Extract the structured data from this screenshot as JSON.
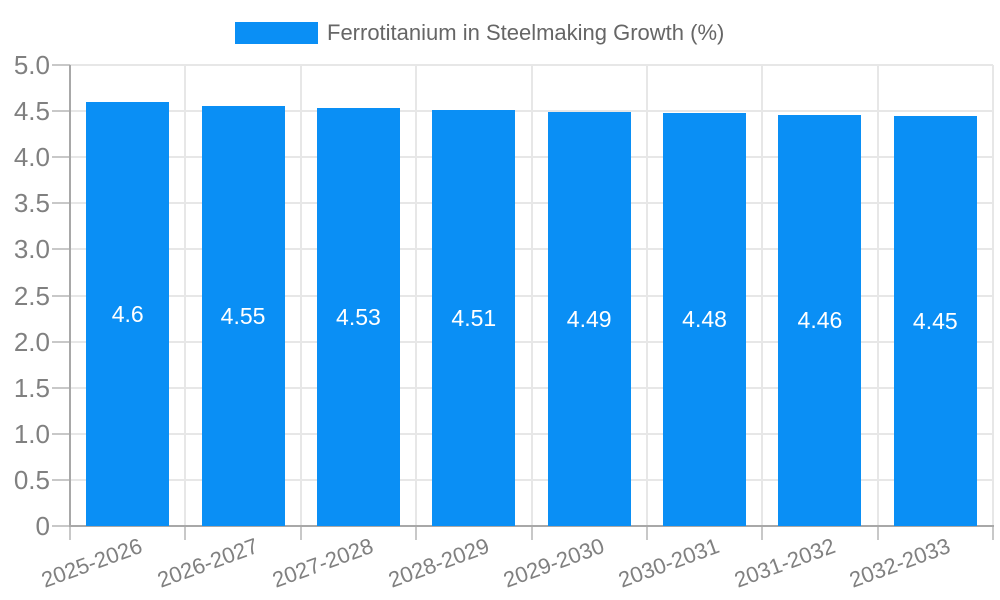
{
  "legend": {
    "label": "Ferrotitanium in Steelmaking Growth (%)"
  },
  "chart_data": {
    "type": "bar",
    "title": "Ferrotitanium in Steelmaking Growth (%)",
    "categories": [
      "2025-2026",
      "2026-2027",
      "2027-2028",
      "2028-2029",
      "2029-2030",
      "2030-2031",
      "2031-2032",
      "2032-2033"
    ],
    "values": [
      4.6,
      4.55,
      4.53,
      4.51,
      4.49,
      4.48,
      4.46,
      4.45
    ],
    "value_labels": [
      "4.6",
      "4.55",
      "4.53",
      "4.51",
      "4.49",
      "4.48",
      "4.46",
      "4.45"
    ],
    "xlabel": "",
    "ylabel": "",
    "ylim": [
      0,
      5
    ],
    "y_tick_step": 0.5,
    "y_tick_labels": [
      "0",
      "0.5",
      "1.0",
      "1.5",
      "2.0",
      "2.5",
      "3.0",
      "3.5",
      "4.0",
      "4.5",
      "5.0"
    ],
    "grid": true,
    "legend_position": "top-center",
    "x_tick_rotation_deg": -20,
    "colors": {
      "bar": "#0a8ff5",
      "bar_label": "#ffffff",
      "grid": "#e7e7e7",
      "axis": "#a8a8a8",
      "tick": "#c8c8c8",
      "tick_label": "#808080",
      "legend_text": "#666666",
      "background": "#ffffff"
    }
  }
}
